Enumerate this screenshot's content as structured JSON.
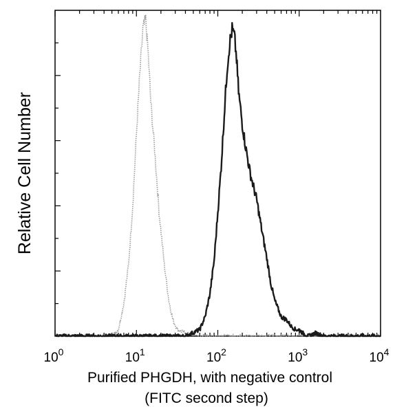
{
  "chart_data": {
    "type": "line",
    "title": "",
    "xlabel": "Purified PHGDH, with negative control",
    "xlabel_line2": "(FITC second step)",
    "ylabel": "Relative Cell Number",
    "x_scale": "log",
    "xlim": [
      1,
      10000
    ],
    "ylim": [
      0,
      1.0
    ],
    "x_tick_labels": [
      {
        "base": "10",
        "exp": "0"
      },
      {
        "base": "10",
        "exp": "1"
      },
      {
        "base": "10",
        "exp": "2"
      },
      {
        "base": "10",
        "exp": "3"
      },
      {
        "base": "10",
        "exp": "4"
      }
    ],
    "grid": false,
    "legend": "none",
    "series": [
      {
        "style": "light-gray-dotted",
        "color": "#9a9a9a",
        "x": [
          1,
          5,
          6,
          7,
          8,
          9,
          10,
          11,
          12,
          13,
          14,
          15,
          17,
          19,
          22,
          25,
          28,
          32,
          40,
          60,
          100,
          1000,
          10000
        ],
        "y": [
          0,
          0,
          0.02,
          0.1,
          0.22,
          0.4,
          0.62,
          0.8,
          0.94,
          0.97,
          0.86,
          0.72,
          0.55,
          0.38,
          0.22,
          0.11,
          0.05,
          0.02,
          0.01,
          0,
          0,
          0,
          0
        ]
      },
      {
        "style": "dark-solid",
        "color": "#1a1a1a",
        "x": [
          1,
          10,
          40,
          60,
          70,
          80,
          90,
          100,
          110,
          120,
          130,
          140,
          150,
          160,
          170,
          180,
          200,
          220,
          250,
          280,
          300,
          350,
          400,
          450,
          500,
          600,
          700,
          800,
          900,
          1000,
          1100,
          1300,
          1600,
          2000,
          3000,
          10000
        ],
        "y": [
          0,
          0,
          0,
          0.02,
          0.06,
          0.13,
          0.23,
          0.38,
          0.52,
          0.68,
          0.82,
          0.9,
          0.94,
          0.92,
          0.85,
          0.75,
          0.65,
          0.58,
          0.5,
          0.45,
          0.42,
          0.32,
          0.24,
          0.16,
          0.11,
          0.06,
          0.05,
          0.03,
          0.02,
          0.02,
          0.01,
          0,
          0.01,
          0,
          0,
          0
        ]
      }
    ]
  }
}
